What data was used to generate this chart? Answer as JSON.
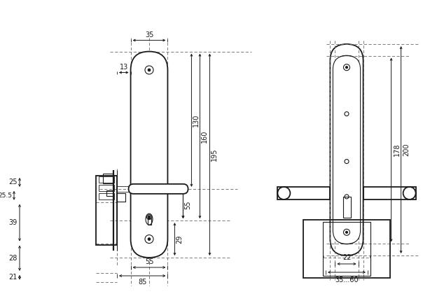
{
  "bg_color": "#ffffff",
  "line_color": "#1a1a1a",
  "dash_color": "#666666",
  "lw_main": 1.3,
  "lw_thin": 0.8,
  "lw_dash": 0.6,
  "fs": 7.0
}
